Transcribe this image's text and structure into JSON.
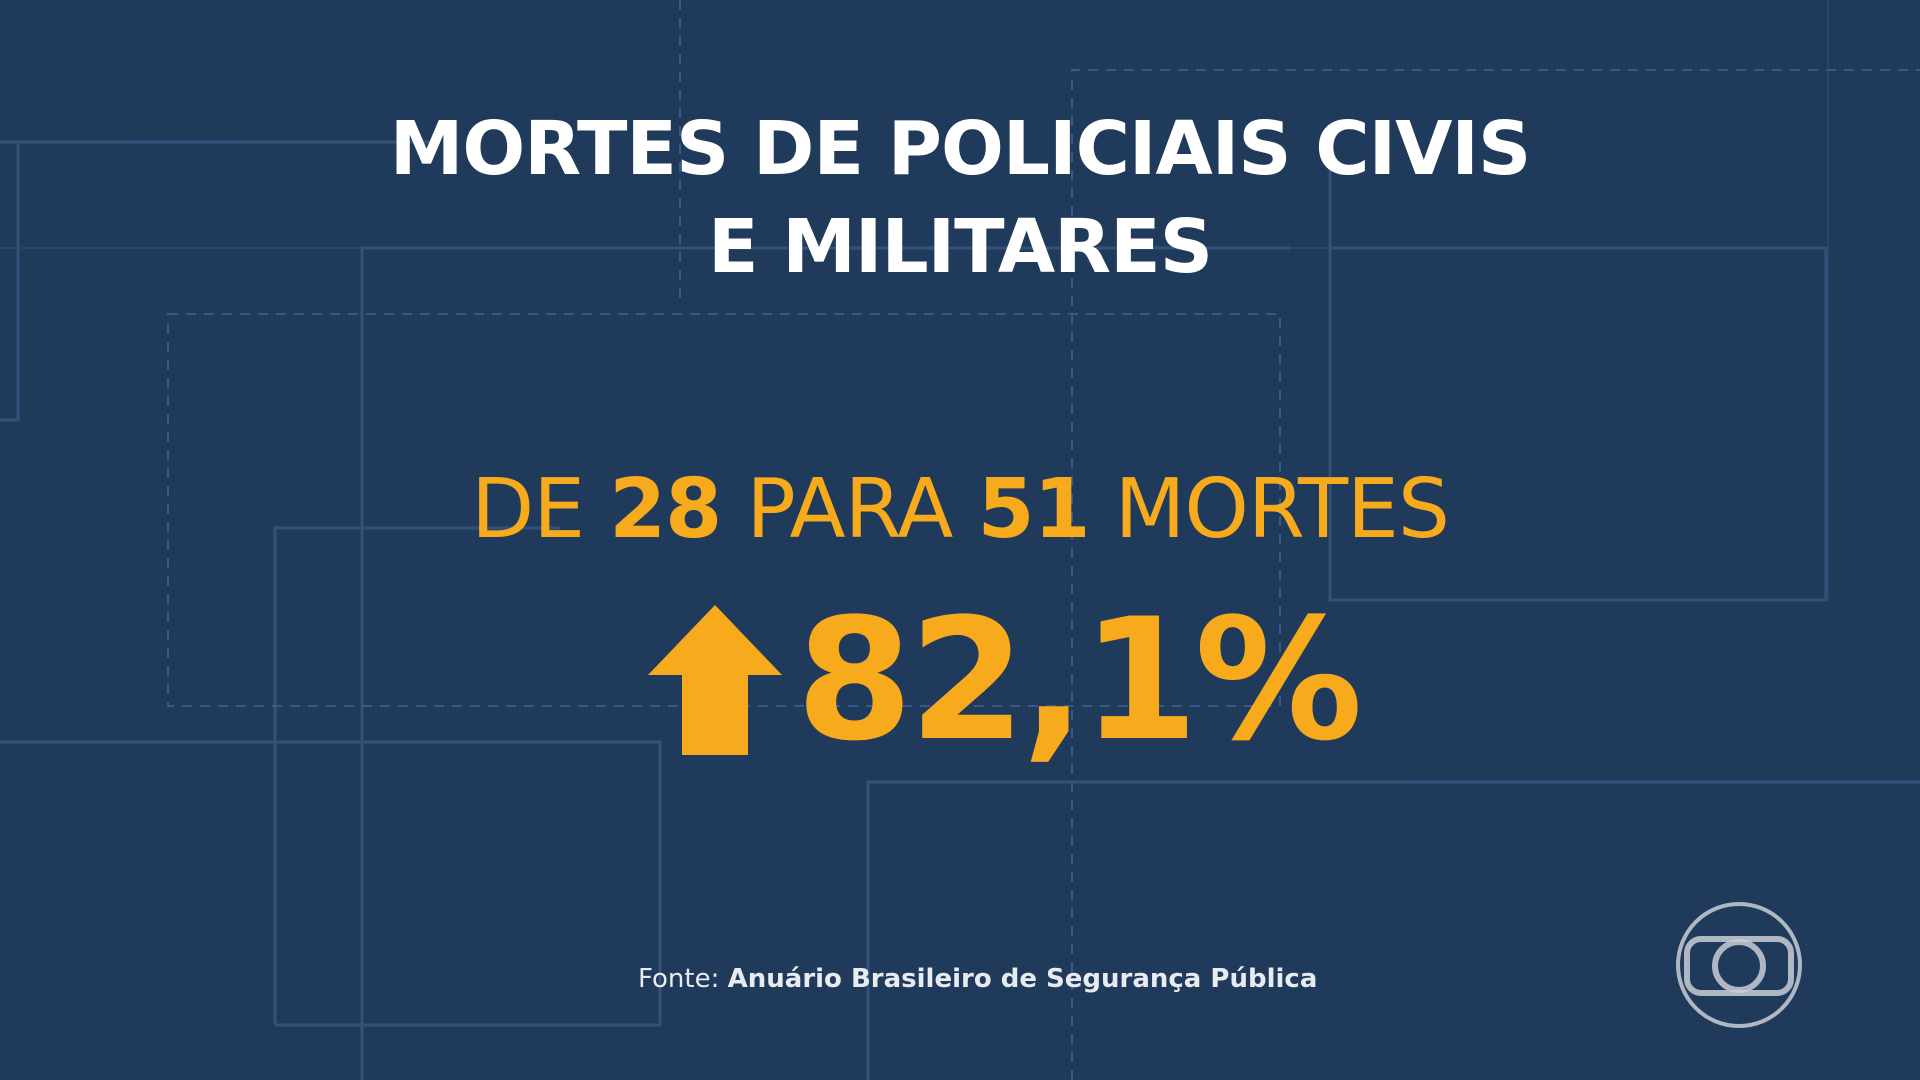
{
  "title": {
    "line1": "MORTES DE POLICIAIS CIVIS",
    "line2": "E MILITARES"
  },
  "headline": {
    "prefix": "DE",
    "from_value": "28",
    "connector": "PARA",
    "to_value": "51",
    "suffix": "MORTES"
  },
  "stat": {
    "value": "82,1%",
    "direction_icon": "arrow-up-icon"
  },
  "source": {
    "label": "Fonte:",
    "value": "Anuário Brasileiro de Segurança Pública"
  },
  "branding": {
    "logo_icon": "globo-logo-icon"
  },
  "colors": {
    "background": "#203a5c",
    "accent": "#f6aa1c",
    "text": "#ffffff"
  }
}
